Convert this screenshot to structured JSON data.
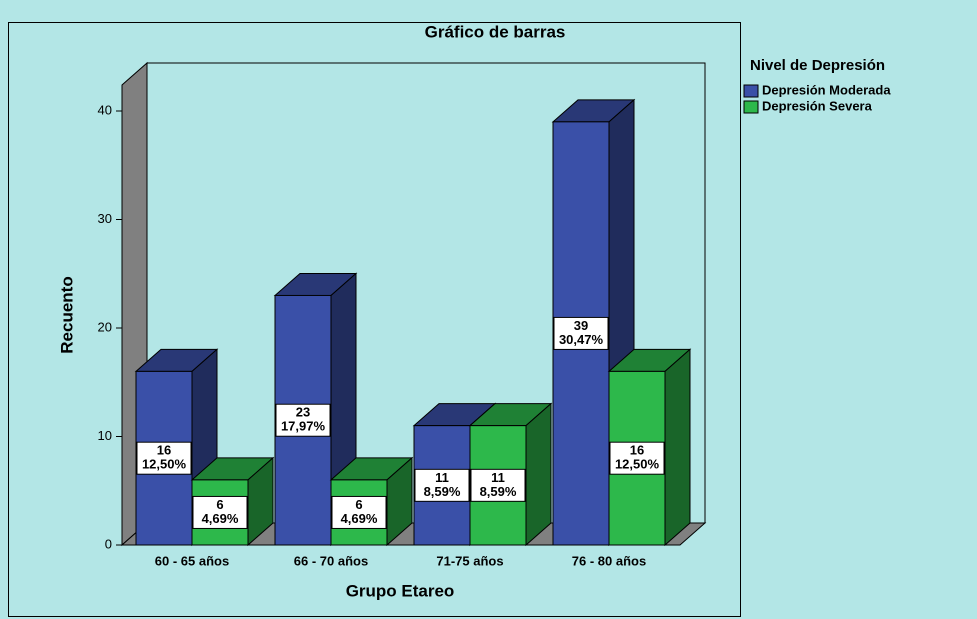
{
  "chart_data": {
    "type": "bar",
    "title": "Gráfico de barras",
    "x_label": "Grupo Etareo",
    "y_label": "Recuento",
    "categories": [
      "60 - 65 años",
      "66 - 70 años",
      "71-75 años",
      "76 - 80 años"
    ],
    "series": [
      {
        "name": "Depresión Moderada",
        "color": "#3a50a8",
        "values": [
          16,
          23,
          11,
          39
        ],
        "percent_labels": [
          "12,50%",
          "17,97%",
          "8,59%",
          "30,47%"
        ]
      },
      {
        "name": "Depresión Severa",
        "color": "#2db84b",
        "values": [
          6,
          6,
          11,
          16
        ],
        "percent_labels": [
          "4,69%",
          "4,69%",
          "8,59%",
          "12,50%"
        ]
      }
    ],
    "ylim": [
      0,
      40
    ],
    "yticks": [
      0,
      10,
      20,
      30,
      40
    ],
    "legend_title": "Nivel de Depresión",
    "legend": "top-right",
    "grid": false
  }
}
